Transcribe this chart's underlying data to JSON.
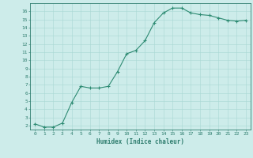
{
  "x": [
    0,
    1,
    2,
    3,
    4,
    5,
    6,
    7,
    8,
    9,
    10,
    11,
    12,
    13,
    14,
    15,
    16,
    17,
    18,
    19,
    20,
    21,
    22,
    23
  ],
  "y": [
    2.2,
    1.8,
    1.8,
    2.3,
    4.8,
    6.8,
    6.6,
    6.6,
    6.8,
    8.6,
    10.8,
    11.2,
    12.4,
    14.6,
    15.8,
    16.4,
    16.4,
    15.8,
    15.6,
    15.5,
    15.2,
    14.9,
    14.8,
    14.9
  ],
  "line_color": "#2e8b73",
  "marker": "+",
  "marker_color": "#2e8b73",
  "bg_color": "#cdecea",
  "grid_color": "#a8d8d4",
  "xlabel": "Humidex (Indice chaleur)",
  "xlim": [
    -0.5,
    23.5
  ],
  "ylim": [
    1.5,
    17.0
  ],
  "yticks": [
    2,
    3,
    4,
    5,
    6,
    7,
    8,
    9,
    10,
    11,
    12,
    13,
    14,
    15,
    16
  ],
  "xticks": [
    0,
    1,
    2,
    3,
    4,
    5,
    6,
    7,
    8,
    9,
    10,
    11,
    12,
    13,
    14,
    15,
    16,
    17,
    18,
    19,
    20,
    21,
    22,
    23
  ],
  "tick_color": "#2e7d6e",
  "axis_color": "#2e7d6e",
  "label_fontsize": 5.5,
  "tick_fontsize": 4.5
}
